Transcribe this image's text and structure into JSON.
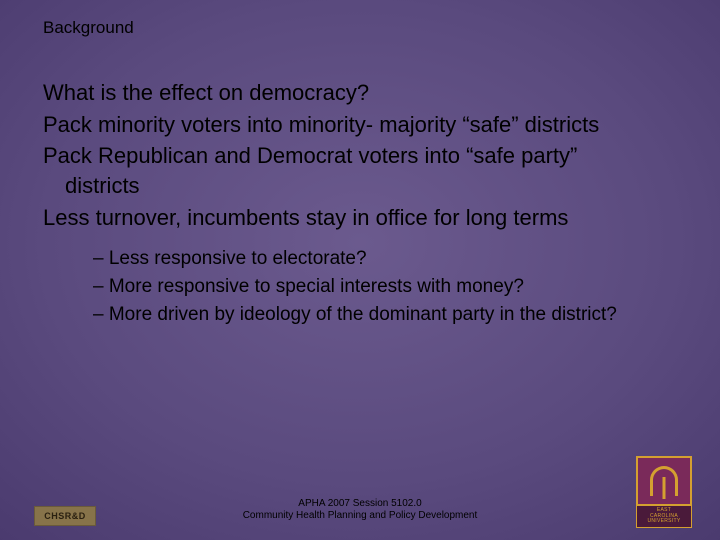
{
  "slide": {
    "title": "Background",
    "main_points": [
      "What is the effect on democracy?",
      "Pack minority voters into minority- majority “safe” districts",
      "Pack Republican and Democrat voters into “safe party” districts",
      "Less turnover, incumbents stay in office for long terms"
    ],
    "sub_points": [
      "Less responsive to electorate?",
      "More responsive to special interests with money?",
      "More driven by ideology of the dominant party in the district?"
    ]
  },
  "footer": {
    "line1": "APHA 2007 Session 5102.0",
    "line2": "Community Health Planning and Policy Development"
  },
  "logos": {
    "left_text": "CHSR&D",
    "right_top": "EAST",
    "right_mid": "CAROLINA",
    "right_bot": "UNIVERSITY"
  },
  "style": {
    "bg_center": "#6b5a8e",
    "bg_edge": "#2a1a4e",
    "text_color": "#000000",
    "title_fontsize": 17,
    "main_fontsize": 22,
    "sub_fontsize": 19,
    "footer_fontsize": 10,
    "logo_left_bg": "#87734a",
    "logo_right_bg": "#7a2a5a",
    "logo_right_accent": "#d4a030"
  }
}
